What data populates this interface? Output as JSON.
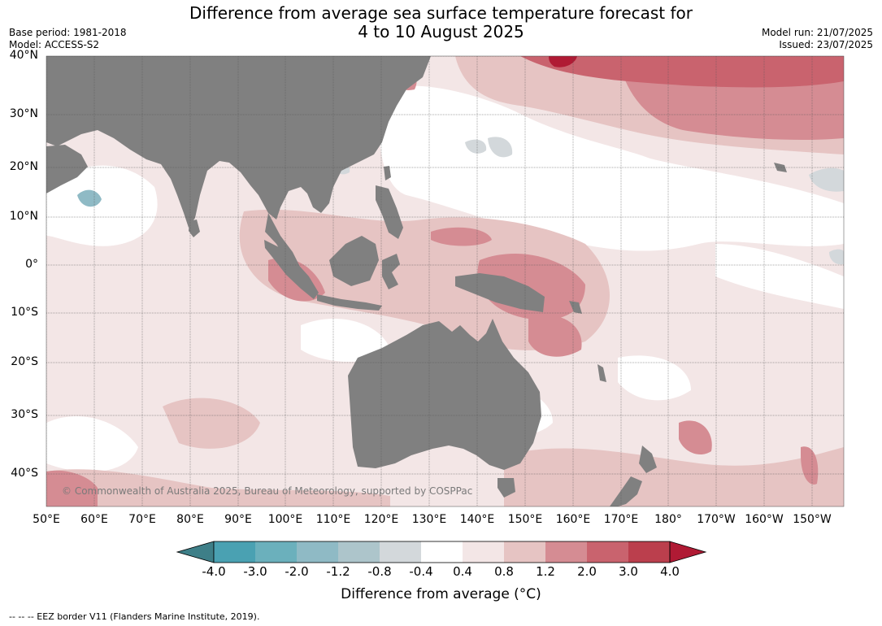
{
  "title_line1": "Difference from average sea surface temperature forecast for",
  "title_line2": "4 to 10 August 2025",
  "base_period": "Base period: 1981-2018",
  "model": "Model: ACCESS-S2",
  "model_run": "Model run: 21/07/2025",
  "issued": "Issued: 23/07/2025",
  "attribution": "© Commonwealth of Australia 2025, Bureau of Meteorology, supported by COSPPac",
  "footer_note": "--  --  -- EEZ border V11 (Flanders Marine Institute, 2019).",
  "lat_labels": [
    "40°N",
    "30°N",
    "20°N",
    "10°N",
    "0°",
    "10°S",
    "20°S",
    "30°S",
    "40°S"
  ],
  "lon_labels": [
    "50°E",
    "60°E",
    "70°E",
    "80°E",
    "90°E",
    "100°E",
    "110°E",
    "120°E",
    "130°E",
    "140°E",
    "150°E",
    "160°E",
    "170°E",
    "180°",
    "170°W",
    "160°W",
    "150°W"
  ],
  "colorbar": {
    "label": "Difference from average ($^\\circ$C)",
    "label_display": "Difference from average (°C)",
    "ticks": [
      "-4.0",
      "-3.0",
      "-2.0",
      "-1.2",
      "-0.8",
      "-0.4",
      "0.4",
      "0.8",
      "1.2",
      "2.0",
      "3.0",
      "4.0"
    ],
    "colors": [
      "#3e7f88",
      "#4aa1b2",
      "#6bb0bc",
      "#8fbac5",
      "#adc5cb",
      "#d3d8db",
      "#ffffff",
      "#f3e6e6",
      "#e6c4c3",
      "#d58c93",
      "#c9636e",
      "#bb3f4d",
      "#b01a34"
    ]
  },
  "map_colors": {
    "land": "#808080",
    "warm_light": "#f3e6e6",
    "warm_mid": "#e6c4c3",
    "warm_strong": "#d58c93",
    "warm_stronger": "#c9636e",
    "warm_max": "#b01a34",
    "cool_light": "#d3d8db",
    "cool_mid": "#8fbac5"
  }
}
